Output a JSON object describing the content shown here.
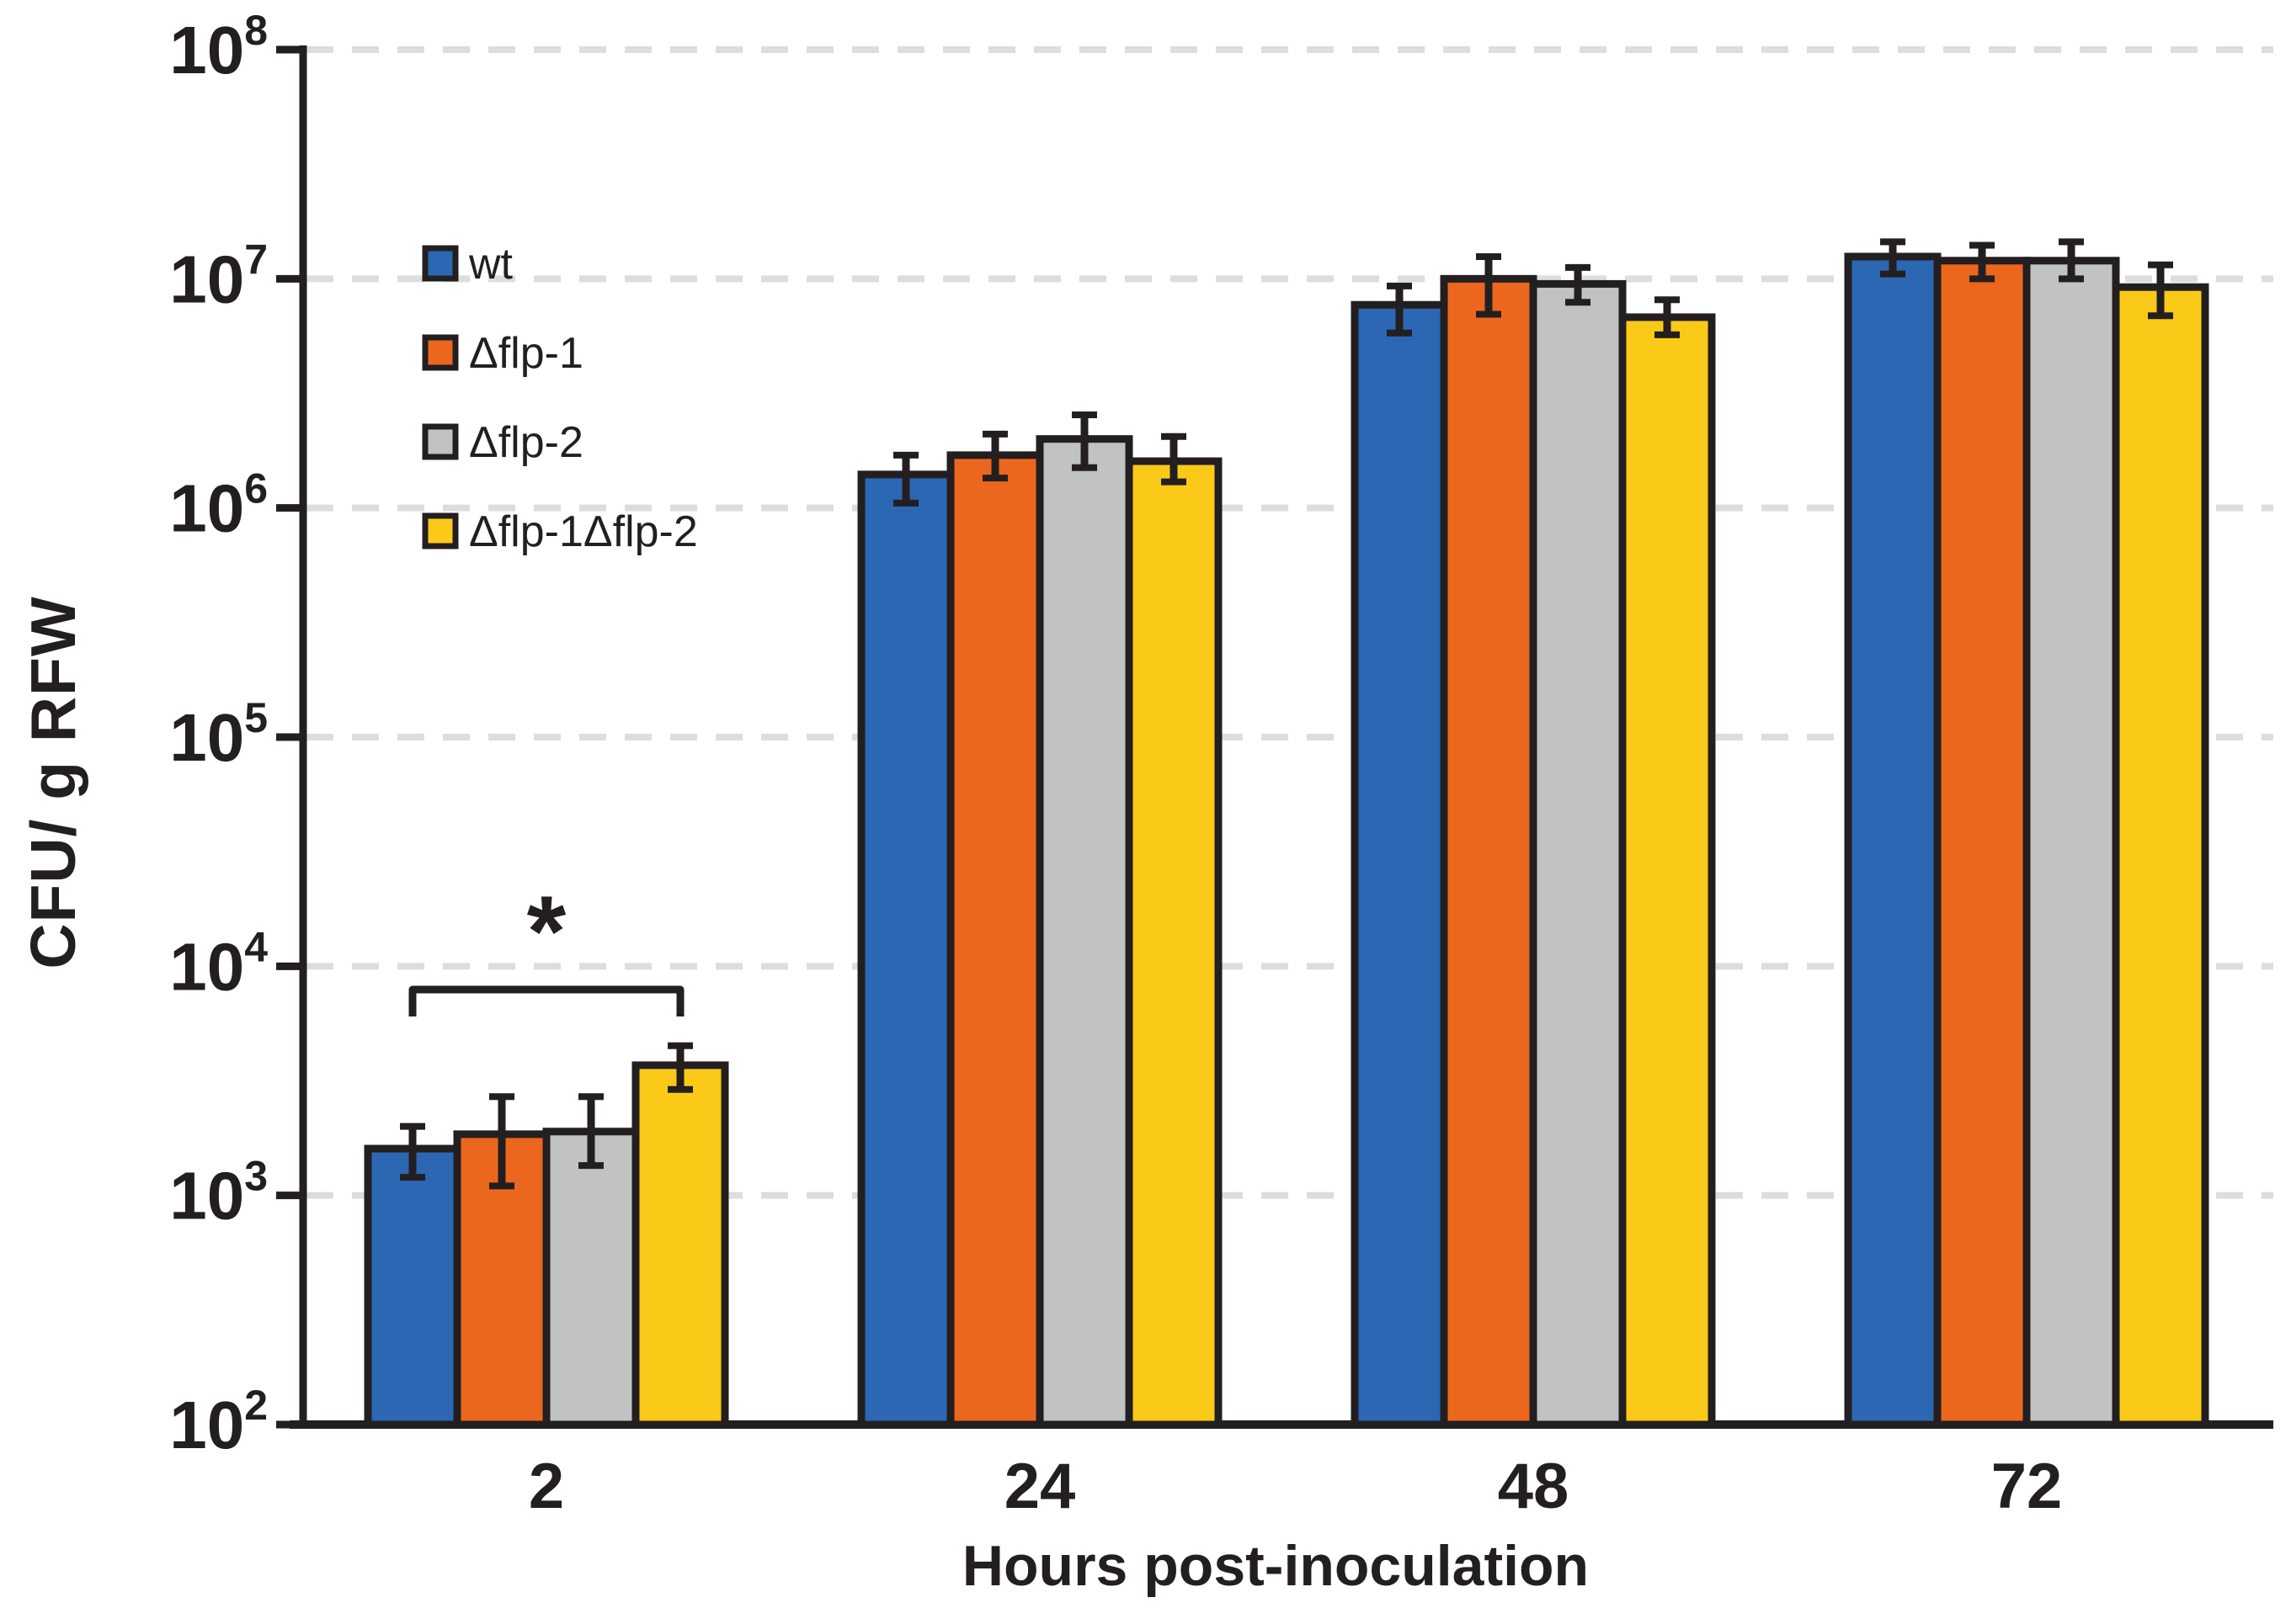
{
  "figure": {
    "background": "#FFFFFF",
    "x_axis_title": "Hours post-inoculation",
    "y_axis_title": "CFU/ g RFW"
  },
  "colors": {
    "ink": "#231F20",
    "grid": "#DDDDDD",
    "background": "#FFFFFF",
    "wt": "#2B67B2",
    "flp1": "#EC671E",
    "flp2": "#C1C2C2",
    "flp1flp2": "#FBCA18"
  },
  "chart_data": {
    "type": "bar",
    "y_scale": "log10",
    "ylim": [
      100,
      100000000
    ],
    "y_tick_base": "10",
    "y_tick_exponents": [
      2,
      3,
      4,
      5,
      6,
      7,
      8
    ],
    "grid": "dashed horizontal gridlines at each decade",
    "legend_position": "upper-left inside plot",
    "xlabel": "Hours post-inoculation",
    "ylabel": "CFU/ g RFW",
    "categories": [
      "2",
      "24",
      "48",
      "72"
    ],
    "series": [
      {
        "name": "wt",
        "color": "#2B67B2",
        "values": [
          1600,
          1400000,
          7700000,
          12500000
        ],
        "err_lo": [
          1200,
          1050000,
          5800000,
          10500000
        ],
        "err_hi": [
          2000,
          1700000,
          9300000,
          14500000
        ]
      },
      {
        "name": "Δflp-1",
        "color": "#EC671E",
        "values": [
          1850,
          1700000,
          10000000,
          12000000
        ],
        "err_lo": [
          1100,
          1350000,
          7000000,
          10000000
        ],
        "err_hi": [
          2700,
          2100000,
          12500000,
          14000000
        ]
      },
      {
        "name": "Δflp-2",
        "color": "#C1C2C2",
        "values": [
          1900,
          2000000,
          9500000,
          12000000
        ],
        "err_lo": [
          1350,
          1500000,
          7900000,
          10000000
        ],
        "err_hi": [
          2700,
          2550000,
          11200000,
          14500000
        ]
      },
      {
        "name": "Δflp-1Δflp-2",
        "color": "#FBCA18",
        "values": [
          3700,
          1600000,
          6800000,
          9200000
        ],
        "err_lo": [
          2900,
          1300000,
          5700000,
          6900000
        ],
        "err_hi": [
          4500,
          2050000,
          8100000,
          11500000
        ]
      }
    ],
    "significance": {
      "label": "*",
      "category_index": 0,
      "series_from_index": 0,
      "series_to_index": 3
    }
  }
}
